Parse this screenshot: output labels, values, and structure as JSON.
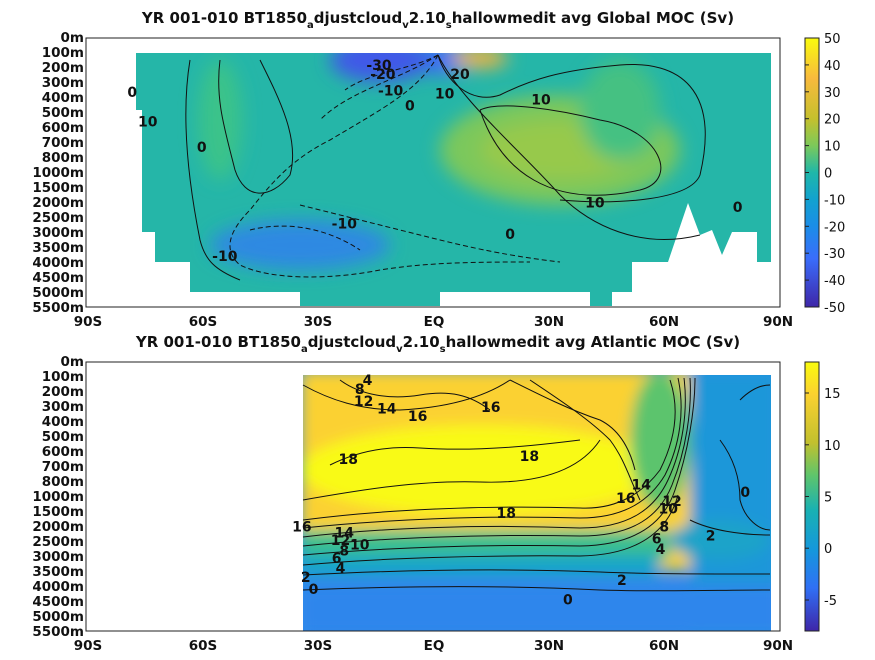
{
  "chart_data": [
    {
      "type": "heatmap",
      "title": {
        "prefix": "YR 001-010 BT1850",
        "sub1": "a",
        "mid1": "djustcloud",
        "sub2": "v",
        "mid2": "2.10",
        "sub3": "s",
        "suffix": "hallowmedit avg  Global MOC (Sv)"
      },
      "x_ticks": [
        "90S",
        "60S",
        "30S",
        "EQ",
        "30N",
        "60N",
        "90N"
      ],
      "x_range": [
        -90,
        90
      ],
      "y_ticks": [
        "0m",
        "100m",
        "200m",
        "300m",
        "400m",
        "500m",
        "600m",
        "700m",
        "800m",
        "1000m",
        "1500m",
        "2000m",
        "2500m",
        "3000m",
        "3500m",
        "4000m",
        "4500m",
        "5000m",
        "5500m"
      ],
      "colorbar": {
        "min": -50,
        "max": 50,
        "ticks": [
          "50",
          "40",
          "30",
          "20",
          "10",
          "0",
          "-10",
          "-20",
          "-30",
          "-40",
          "-50"
        ]
      },
      "contour_labels": [
        {
          "text": "-30",
          "lat": -14,
          "depth_index": 1.8
        },
        {
          "text": "-20",
          "lat": -13,
          "depth_index": 2.4
        },
        {
          "text": "20",
          "lat": 7,
          "depth_index": 2.4
        },
        {
          "text": "-10",
          "lat": -11,
          "depth_index": 3.5
        },
        {
          "text": "10",
          "lat": 3,
          "depth_index": 3.7
        },
        {
          "text": "0",
          "lat": -78,
          "depth_index": 3.6
        },
        {
          "text": "10",
          "lat": 28,
          "depth_index": 4.1
        },
        {
          "text": "0",
          "lat": -6,
          "depth_index": 4.5
        },
        {
          "text": "10",
          "lat": -74,
          "depth_index": 5.6
        },
        {
          "text": "0",
          "lat": -60,
          "depth_index": 7.3
        },
        {
          "text": "10",
          "lat": 42,
          "depth_index": 11.0
        },
        {
          "text": "0",
          "lat": 79,
          "depth_index": 11.3
        },
        {
          "text": "-10",
          "lat": -23,
          "depth_index": 12.4
        },
        {
          "text": "0",
          "lat": 20,
          "depth_index": 13.1
        },
        {
          "text": "-10",
          "lat": -54,
          "depth_index": 14.6
        }
      ]
    },
    {
      "type": "heatmap",
      "title": {
        "prefix": "YR 001-010 BT1850",
        "sub1": "a",
        "mid1": "djustcloud",
        "sub2": "v",
        "mid2": "2.10",
        "sub3": "s",
        "suffix": "hallowmedit avg  Atlantic MOC (Sv)"
      },
      "x_ticks": [
        "90S",
        "60S",
        "30S",
        "EQ",
        "30N",
        "60N",
        "90N"
      ],
      "x_range": [
        -90,
        90
      ],
      "y_ticks": [
        "0m",
        "100m",
        "200m",
        "300m",
        "400m",
        "500m",
        "600m",
        "700m",
        "800m",
        "1000m",
        "1500m",
        "2000m",
        "2500m",
        "3000m",
        "3500m",
        "4000m",
        "4500m",
        "5000m",
        "5500m"
      ],
      "colorbar": {
        "min": -8,
        "max": 18,
        "ticks": [
          "15",
          "10",
          "5",
          "0",
          "-5"
        ]
      },
      "contour_labels": [
        {
          "text": "4",
          "lat": -17,
          "depth_index": 1.2
        },
        {
          "text": "8",
          "lat": -19,
          "depth_index": 1.8
        },
        {
          "text": "12",
          "lat": -18,
          "depth_index": 2.6
        },
        {
          "text": "14",
          "lat": -12,
          "depth_index": 3.1
        },
        {
          "text": "16",
          "lat": -4,
          "depth_index": 3.6
        },
        {
          "text": "16",
          "lat": 15,
          "depth_index": 3.0
        },
        {
          "text": "18",
          "lat": -22,
          "depth_index": 6.5
        },
        {
          "text": "18",
          "lat": 25,
          "depth_index": 6.3
        },
        {
          "text": "14",
          "lat": 54,
          "depth_index": 8.2
        },
        {
          "text": "16",
          "lat": 50,
          "depth_index": 9.1
        },
        {
          "text": "12",
          "lat": 62,
          "depth_index": 9.3
        },
        {
          "text": "10",
          "lat": 61,
          "depth_index": 9.8
        },
        {
          "text": "0",
          "lat": 81,
          "depth_index": 8.7
        },
        {
          "text": "18",
          "lat": 19,
          "depth_index": 10.1
        },
        {
          "text": "16",
          "lat": -34,
          "depth_index": 11.0
        },
        {
          "text": "14",
          "lat": -23,
          "depth_index": 11.4
        },
        {
          "text": "12",
          "lat": -24,
          "depth_index": 11.9
        },
        {
          "text": "10",
          "lat": -19,
          "depth_index": 12.2
        },
        {
          "text": "8",
          "lat": -23,
          "depth_index": 12.6
        },
        {
          "text": "6",
          "lat": -25,
          "depth_index": 13.1
        },
        {
          "text": "4",
          "lat": -24,
          "depth_index": 13.8
        },
        {
          "text": "8",
          "lat": 60,
          "depth_index": 11.0
        },
        {
          "text": "6",
          "lat": 58,
          "depth_index": 11.8
        },
        {
          "text": "4",
          "lat": 59,
          "depth_index": 12.5
        },
        {
          "text": "2",
          "lat": 72,
          "depth_index": 11.6
        },
        {
          "text": "2",
          "lat": -33,
          "depth_index": 14.4
        },
        {
          "text": "0",
          "lat": -31,
          "depth_index": 15.2
        },
        {
          "text": "2",
          "lat": 49,
          "depth_index": 14.6
        },
        {
          "text": "0",
          "lat": 35,
          "depth_index": 15.9
        }
      ]
    }
  ]
}
